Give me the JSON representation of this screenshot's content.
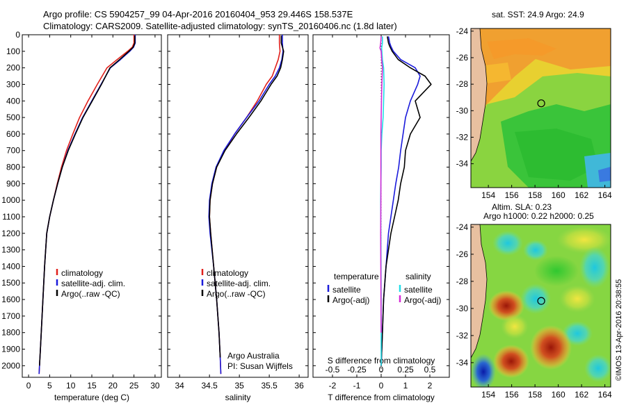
{
  "header": {
    "line1": "Argo profile: CS 5904257_99 04-Apr-2016 20160404_953 29.446S 158.537E",
    "line2": "Climatology: CARS2009. Satellite-adjusted climatology: synTS_20160406.nc (1.8d later)"
  },
  "credits": {
    "org": "Argo Australia",
    "pi": "PI: Susan Wijffels"
  },
  "watermark": "©IMOS 13-Apr-2016 20:38:55",
  "colors": {
    "clim": "#e0201b",
    "sat": "#1a1adb",
    "argo": "#000000",
    "sat_s": "#22dde8",
    "argo_s": "#d62ad6"
  },
  "chart_data": [
    {
      "id": "temperature",
      "type": "line",
      "xlabel": "temperature (deg C)",
      "ylabel": "",
      "xlim": [
        -1.5,
        31.5
      ],
      "ylim": [
        2070,
        0
      ],
      "xticks": [
        0,
        5,
        10,
        15,
        20,
        25,
        30
      ],
      "yticks": [
        0,
        100,
        200,
        300,
        400,
        500,
        600,
        700,
        800,
        900,
        1000,
        1100,
        1200,
        1300,
        1400,
        1500,
        1600,
        1700,
        1800,
        1900,
        2000
      ],
      "legend": [
        "climatology",
        "satellite-adj. clim.",
        "Argo(..raw -QC)"
      ],
      "series": [
        {
          "name": "climatology",
          "color": "clim",
          "x": [
            25.0,
            25.0,
            24.6,
            23.5,
            21.0,
            18.6,
            16.3,
            14.1,
            12.1,
            10.5,
            9.0,
            7.8,
            6.8,
            5.9,
            5.0,
            4.3,
            3.8,
            3.4,
            3.0,
            2.8,
            2.6,
            2.5
          ],
          "y": [
            0,
            50,
            75,
            100,
            150,
            200,
            300,
            400,
            500,
            600,
            700,
            800,
            900,
            1000,
            1100,
            1200,
            1400,
            1600,
            1800,
            1900,
            2000,
            2050
          ]
        },
        {
          "name": "satellite-adj. clim.",
          "color": "sat",
          "x": [
            25.3,
            25.3,
            24.9,
            24.0,
            21.8,
            19.4,
            17.2,
            15.0,
            12.8,
            11.0,
            9.3,
            8.0,
            6.9,
            5.9,
            5.0,
            4.3,
            3.8,
            3.4,
            3.0,
            2.8,
            2.6,
            2.5
          ],
          "y": [
            0,
            50,
            75,
            100,
            150,
            200,
            300,
            400,
            500,
            600,
            700,
            800,
            900,
            1000,
            1100,
            1200,
            1400,
            1600,
            1800,
            1900,
            2000,
            2050
          ]
        },
        {
          "name": "Argo(..raw -QC)",
          "color": "argo",
          "x": [
            25.2,
            25.2,
            24.8,
            23.8,
            21.6,
            19.3,
            17.3,
            15.1,
            12.9,
            11.1,
            9.4,
            8.0,
            6.9,
            5.9,
            5.0,
            4.3,
            3.8,
            3.4,
            3.0,
            2.8,
            2.6
          ],
          "y": [
            5,
            50,
            75,
            100,
            150,
            200,
            300,
            400,
            500,
            600,
            700,
            800,
            900,
            1000,
            1100,
            1200,
            1400,
            1600,
            1800,
            1900,
            2000
          ]
        }
      ]
    },
    {
      "id": "salinity",
      "type": "line",
      "xlabel": "salinity",
      "ylabel": "",
      "xlim": [
        33.8,
        36.15
      ],
      "ylim": [
        2070,
        0
      ],
      "xticks": [
        34,
        34.5,
        35,
        35.5,
        36
      ],
      "xtick_labels": [
        "34",
        "34.5",
        "35",
        "35.5",
        "36"
      ],
      "legend": [
        "climatology",
        "satellite-adj. clim.",
        "Argo(..raw -QC)"
      ],
      "series": [
        {
          "name": "climatology",
          "color": "clim",
          "x": [
            35.67,
            35.67,
            35.68,
            35.65,
            35.6,
            35.55,
            35.45,
            35.3,
            35.12,
            34.92,
            34.75,
            34.62,
            34.55,
            34.51,
            34.5,
            34.52,
            34.57,
            34.62,
            34.66,
            34.68,
            34.69
          ],
          "y": [
            0,
            50,
            100,
            150,
            200,
            250,
            300,
            400,
            500,
            600,
            700,
            800,
            900,
            1000,
            1100,
            1200,
            1400,
            1600,
            1800,
            1950,
            2050
          ]
        },
        {
          "name": "satellite-adj. clim.",
          "color": "sat",
          "x": [
            35.72,
            35.72,
            35.73,
            35.71,
            35.67,
            35.6,
            35.5,
            35.33,
            35.12,
            34.92,
            34.74,
            34.61,
            34.54,
            34.5,
            34.49,
            34.51,
            34.57,
            34.62,
            34.66,
            34.68,
            34.69
          ],
          "y": [
            0,
            50,
            100,
            150,
            200,
            250,
            300,
            400,
            500,
            600,
            700,
            800,
            900,
            1000,
            1100,
            1200,
            1400,
            1600,
            1800,
            1950,
            2050
          ]
        },
        {
          "name": "Argo(..raw -QC)",
          "color": "argo",
          "x": [
            35.7,
            35.7,
            35.74,
            35.72,
            35.69,
            35.63,
            35.53,
            35.36,
            35.16,
            34.95,
            34.76,
            34.62,
            34.55,
            34.51,
            34.5,
            34.52,
            34.57,
            34.62,
            34.66,
            34.68
          ],
          "y": [
            5,
            50,
            100,
            150,
            200,
            250,
            300,
            400,
            500,
            600,
            700,
            800,
            900,
            1000,
            1100,
            1200,
            1400,
            1600,
            1800,
            1950
          ]
        }
      ]
    },
    {
      "id": "difference",
      "type": "line",
      "xlabel": "T difference from climatology",
      "xlabel2": "S difference from climatology",
      "xlim": [
        -2.8,
        2.8
      ],
      "ylim": [
        2070,
        0
      ],
      "xticks": [
        -2,
        -1,
        0,
        1,
        2
      ],
      "xticks_s": [
        -0.5,
        -0.25,
        0,
        0.25,
        0.5
      ],
      "s_scale": 2.0,
      "legend_t_title": "temperature",
      "legend_s_title": "salinity",
      "legend_t": [
        "satellite",
        "Argo(-adj)"
      ],
      "legend_s": [
        "satellite",
        "Argo(-adj)"
      ],
      "series": [
        {
          "name": "T satellite",
          "color": "sat",
          "x": [
            0.3,
            0.35,
            0.4,
            0.5,
            0.8,
            1.4,
            1.6,
            1.5,
            1.2,
            1.0,
            0.9,
            0.8,
            0.72,
            0.6,
            0.5,
            0.4,
            0.3,
            0.2,
            0.1,
            0.05,
            0.0
          ],
          "y": [
            10,
            50,
            70,
            100,
            150,
            200,
            250,
            300,
            400,
            500,
            600,
            700,
            800,
            900,
            1000,
            1100,
            1200,
            1400,
            1600,
            1800,
            2000
          ]
        },
        {
          "name": "T Argo(-adj)",
          "color": "argo",
          "x": [
            0.25,
            0.3,
            0.35,
            0.45,
            0.7,
            1.2,
            1.8,
            2.05,
            1.4,
            1.6,
            1.2,
            1.0,
            0.95,
            0.8,
            0.7,
            0.55,
            0.4,
            0.2,
            0.1,
            0.05,
            0.0
          ],
          "y": [
            10,
            50,
            70,
            100,
            150,
            200,
            250,
            300,
            400,
            500,
            600,
            700,
            800,
            900,
            1000,
            1100,
            1200,
            1400,
            1600,
            1800,
            2000
          ]
        },
        {
          "name": "S satellite",
          "color": "sat_s",
          "x": [
            0.05,
            0.05,
            0.02,
            0.03,
            0.05,
            0.1,
            0.12,
            0.1,
            0.08,
            0.03,
            0.0,
            0.0,
            -0.02,
            -0.01,
            0.0,
            0.0
          ],
          "y": [
            10,
            50,
            80,
            100,
            150,
            200,
            300,
            400,
            500,
            600,
            700,
            800,
            1000,
            1200,
            1600,
            2000
          ]
        },
        {
          "name": "S Argo(-adj)",
          "color": "argo_s",
          "x": [
            0.0,
            -0.02,
            -0.05,
            0.0,
            0.02,
            0.05,
            0.03,
            0.01,
            0.0,
            -0.01,
            -0.01,
            -0.01,
            -0.02,
            -0.01,
            0.0
          ],
          "y": [
            10,
            50,
            80,
            100,
            150,
            200,
            300,
            400,
            500,
            600,
            800,
            1000,
            1200,
            1500,
            1800
          ]
        }
      ]
    }
  ],
  "maps": [
    {
      "id": "sst-map",
      "title": "sat. SST: 24.9  Argo: 24.9",
      "lon_ticks": [
        154,
        156,
        158,
        160,
        162,
        164
      ],
      "lat_ticks": [
        -24,
        -26,
        -28,
        -30,
        -32,
        -34
      ],
      "lon_range": [
        152.5,
        164.5
      ],
      "lat_range": [
        -35.8,
        -23.8
      ],
      "argo_lon": 158.537,
      "argo_lat": -29.446
    },
    {
      "id": "sla-map",
      "title": "Altim. SLA: 0.23",
      "title2": "Argo h1000: 0.22  h2000: 0.25",
      "lon_ticks": [
        154,
        156,
        158,
        160,
        162,
        164
      ],
      "lat_ticks": [
        -24,
        -26,
        -28,
        -30,
        -32,
        -34
      ],
      "lon_range": [
        152.5,
        164.5
      ],
      "lat_range": [
        -35.8,
        -23.8
      ],
      "argo_lon": 158.537,
      "argo_lat": -29.446
    }
  ]
}
